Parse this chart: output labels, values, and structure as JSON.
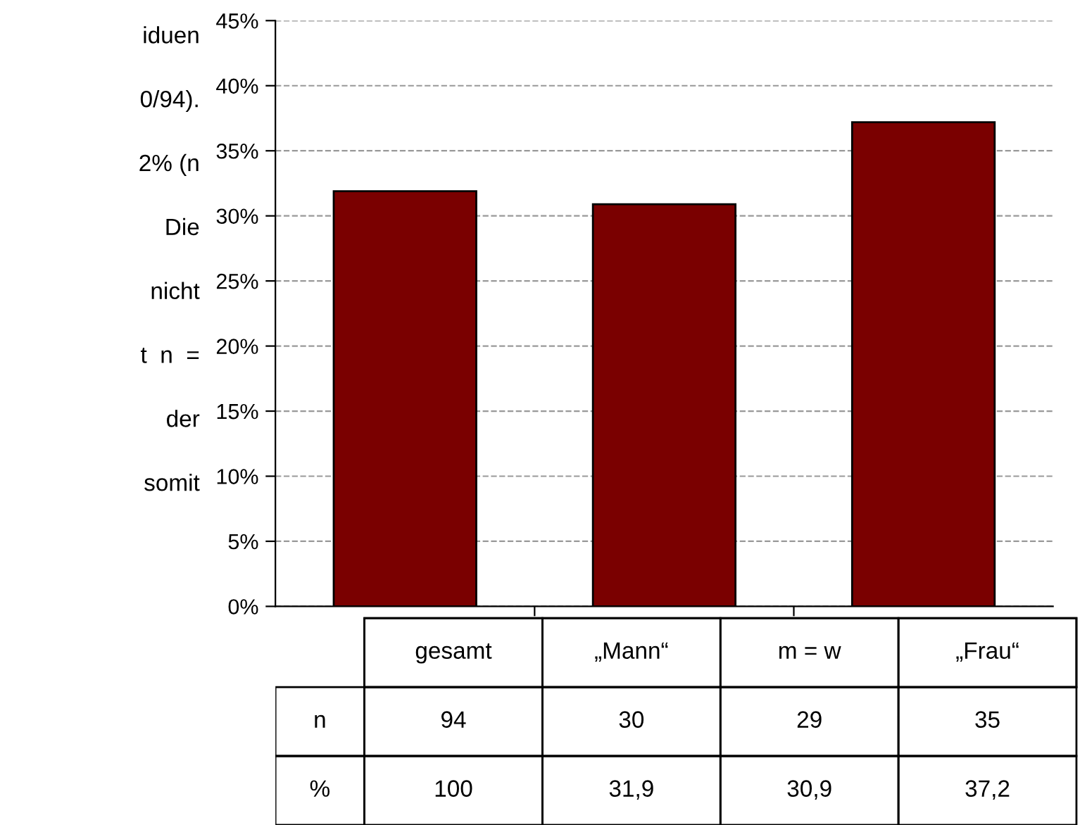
{
  "chart_data": [
    {
      "type": "bar",
      "categories": [
        null,
        null,
        null
      ],
      "values": [
        31.9,
        30.9,
        37.2
      ],
      "color": "#7a0000",
      "ylim": [
        0,
        45
      ],
      "yticks": [
        {
          "value": 0,
          "label": "0%"
        },
        {
          "value": 5,
          "label": "5%"
        },
        {
          "value": 10,
          "label": "10%"
        },
        {
          "value": 15,
          "label": "15%"
        },
        {
          "value": 20,
          "label": "20%"
        },
        {
          "value": 25,
          "label": "25%"
        },
        {
          "value": 30,
          "label": "30%"
        },
        {
          "value": 35,
          "label": "35%"
        },
        {
          "value": 40,
          "label": "40%"
        },
        {
          "value": 45,
          "label": "45%"
        }
      ],
      "grid": "y",
      "line_style": "dashed",
      "annotations": [
        "iduen",
        "0/94).",
        "2% (n",
        "Die",
        "nicht",
        "t  n  =",
        "der",
        "somit"
      ]
    },
    {
      "type": "other",
      "categories": [
        "gesamt",
        "„Mann“",
        "m = w",
        "„Frau“"
      ],
      "series": [
        {
          "name": "n",
          "values": [
            94,
            30,
            29,
            35
          ],
          "value_labels": [
            "94",
            "30",
            "29",
            "35"
          ]
        },
        {
          "name": "%",
          "values": [
            100,
            31.9,
            30.9,
            37.2
          ],
          "value_labels": [
            "100",
            "31,9",
            "30,9",
            "37,2"
          ]
        }
      ]
    }
  ]
}
